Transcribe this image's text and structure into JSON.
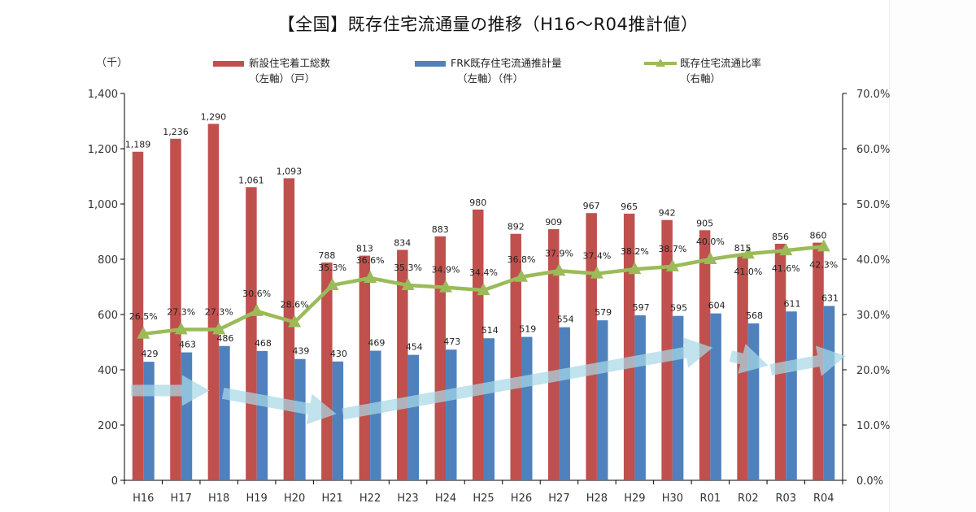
{
  "chart_data": {
    "type": "bar",
    "title": "【全国】既存住宅流通量の推移（H16〜R04推計値）",
    "unit_label": "（千）",
    "xlabel": "",
    "ylabel": "",
    "categories": [
      "H16",
      "H17",
      "H18",
      "H19",
      "H20",
      "H21",
      "H22",
      "H23",
      "H24",
      "H25",
      "H26",
      "H27",
      "H28",
      "H29",
      "H30",
      "R01",
      "R02",
      "R03",
      "R04"
    ],
    "series": [
      {
        "name": "新設住宅着工総数",
        "legend_line1": "新設住宅着工総数",
        "legend_line2": "（左軸）（戸）",
        "type": "bar",
        "axis": "left",
        "color": "#c0504d",
        "values": [
          1189,
          1236,
          1290,
          1061,
          1093,
          788,
          813,
          834,
          883,
          980,
          892,
          909,
          967,
          965,
          942,
          905,
          815,
          856,
          860
        ],
        "labels": [
          "1,189",
          "1,236",
          "1,290",
          "1,061",
          "1,093",
          "788",
          "813",
          "834",
          "883",
          "980",
          "892",
          "909",
          "967",
          "965",
          "942",
          "905",
          "815",
          "856",
          "860"
        ]
      },
      {
        "name": "FRK既存住宅流通推計量",
        "legend_line1": "FRK既存住宅流通推計量",
        "legend_line2": "（左軸）（件）",
        "type": "bar",
        "axis": "left",
        "color": "#4f81bd",
        "values": [
          429,
          463,
          486,
          468,
          439,
          430,
          469,
          454,
          473,
          514,
          519,
          554,
          579,
          597,
          595,
          604,
          568,
          611,
          631
        ],
        "labels": [
          "429",
          "463",
          "486",
          "468",
          "439",
          "430",
          "469",
          "454",
          "473",
          "514",
          "519",
          "554",
          "579",
          "597",
          "595",
          "604",
          "568",
          "611",
          "631"
        ]
      },
      {
        "name": "既存住宅流通比率",
        "legend_line1": "既存住宅流通比率",
        "legend_line2": "（右軸）",
        "type": "line",
        "axis": "right",
        "color": "#9bbb59",
        "marker": "triangle",
        "values": [
          26.5,
          27.3,
          27.3,
          30.6,
          28.6,
          35.3,
          36.6,
          35.3,
          34.9,
          34.4,
          36.8,
          37.9,
          37.4,
          38.2,
          38.7,
          40.0,
          41.0,
          41.6,
          42.3
        ],
        "labels": [
          "26.5%",
          "27.3%",
          "27.3%",
          "30.6%",
          "28.6%",
          "35.3%",
          "36.6%",
          "35.3%",
          "34.9%",
          "34.4%",
          "36.8%",
          "37.9%",
          "37.4%",
          "38.2%",
          "38.7%",
          "40.0%",
          "41.0%",
          "41.6%",
          "42.3%"
        ]
      }
    ],
    "y_left": {
      "range": [
        0,
        1400
      ],
      "ticks": [
        "0",
        "200",
        "400",
        "600",
        "800",
        "1,000",
        "1,200",
        "1,400"
      ],
      "tick_values": [
        0,
        200,
        400,
        600,
        800,
        1000,
        1200,
        1400
      ]
    },
    "y_right": {
      "range": [
        0,
        70
      ],
      "ticks": [
        "0.0%",
        "10.0%",
        "20.0%",
        "30.0%",
        "40.0%",
        "50.0%",
        "60.0%",
        "70.0%"
      ],
      "tick_values": [
        0,
        10,
        20,
        30,
        40,
        50,
        60,
        70
      ]
    },
    "grid": false,
    "legend_position": "top",
    "trend_arrows": {
      "color": "#a8d8e6",
      "segments": [
        {
          "from": "H16",
          "to": "H17",
          "from_value": 325,
          "to_value": 325
        },
        {
          "from": "H18",
          "to": "H21",
          "from_value": 315,
          "to_value": 240
        },
        {
          "from": "H21",
          "to": "R01",
          "from_value": 240,
          "to_value": 480
        },
        {
          "from": "R01",
          "to": "R02",
          "from_value": 450,
          "to_value": 415
        },
        {
          "from": "R02",
          "to": "R04",
          "from_value": 400,
          "to_value": 450
        }
      ]
    }
  }
}
